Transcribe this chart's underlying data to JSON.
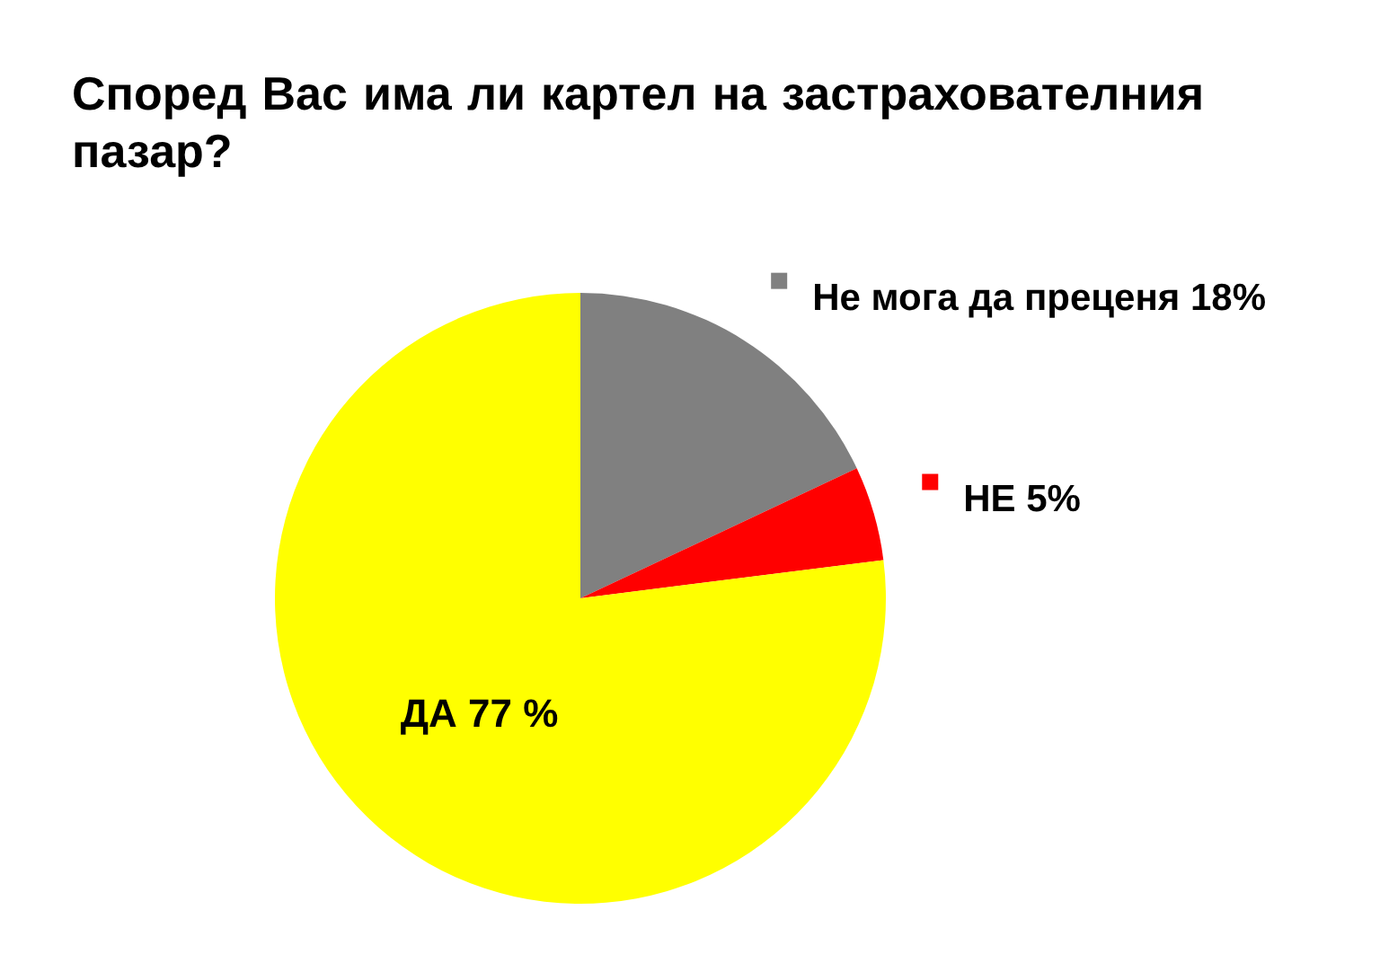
{
  "chart_data": {
    "type": "pie",
    "title": "Според Вас има ли картел на застрахователния пазар?",
    "categories": [
      "Не мога да преценя",
      "НЕ",
      "ДА"
    ],
    "values": [
      18,
      5,
      77
    ],
    "colors": [
      "#808080",
      "#ff0000",
      "#ffff00"
    ],
    "value_labels": [
      "18%",
      "5%",
      "77 %"
    ],
    "legend": "top right"
  }
}
